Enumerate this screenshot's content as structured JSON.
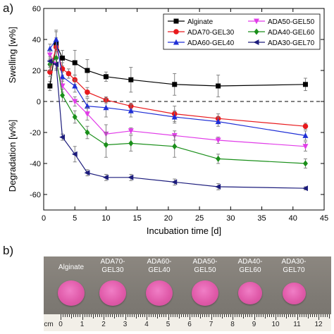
{
  "panel_a_label": "a)",
  "panel_b_label": "b)",
  "chart_data": {
    "type": "line",
    "xlabel": "Incubation time [d]",
    "ylabel_top": "Swelling [w%]",
    "ylabel_bottom": "Degradation [w%]",
    "xlim": [
      0,
      45
    ],
    "ylim": [
      -70,
      60
    ],
    "xticks": [
      0,
      5,
      10,
      15,
      20,
      25,
      30,
      35,
      40,
      45
    ],
    "yticks": [
      -60,
      -40,
      -20,
      0,
      20,
      40,
      60
    ],
    "zero_reference_line": "dashed",
    "legend_placement": "top-right",
    "series": [
      {
        "name": "Alginate",
        "color": "#000000",
        "marker": "square",
        "x": [
          1,
          2,
          3,
          5,
          7,
          10,
          14,
          21,
          28,
          42
        ],
        "y": [
          10,
          37,
          28,
          25,
          20,
          16,
          14,
          11,
          10,
          11
        ],
        "err": [
          3,
          8,
          5,
          8,
          7,
          3,
          8,
          7,
          7,
          4
        ]
      },
      {
        "name": "ADA70-GEL30",
        "color": "#e8191c",
        "marker": "circle",
        "x": [
          1,
          2,
          3,
          4,
          5,
          7,
          10,
          14,
          21,
          28,
          42
        ],
        "y": [
          19,
          35,
          21,
          18,
          14,
          6,
          1,
          -3,
          -8,
          -11,
          -16
        ],
        "err": [
          3,
          6,
          4,
          3,
          3,
          3,
          2,
          2,
          5,
          3,
          2
        ]
      },
      {
        "name": "ADA60-GEL40",
        "color": "#1f2fd6",
        "marker": "triangle-up",
        "x": [
          1,
          2,
          3,
          5,
          7,
          10,
          14,
          21,
          28,
          42
        ],
        "y": [
          34,
          40,
          16,
          10,
          -3,
          -4,
          -6,
          -10,
          -13,
          -22
        ],
        "err": [
          3,
          6,
          3,
          4,
          5,
          6,
          4,
          4,
          3,
          3
        ]
      },
      {
        "name": "ADA50-GEL50",
        "color": "#e13ce8",
        "marker": "triangle-down",
        "x": [
          1,
          2,
          3,
          5,
          7,
          10,
          14,
          21,
          28,
          42
        ],
        "y": [
          30,
          24,
          10,
          0,
          -8,
          -21,
          -19,
          -22,
          -25,
          -29
        ],
        "err": [
          3,
          4,
          4,
          3,
          4,
          6,
          2,
          3,
          2,
          3
        ]
      },
      {
        "name": "ADA40-GEL60",
        "color": "#1a8f1a",
        "marker": "diamond",
        "x": [
          1,
          2,
          3,
          5,
          7,
          10,
          14,
          21,
          28,
          42
        ],
        "y": [
          24,
          28,
          4,
          -10,
          -20,
          -28,
          -27,
          -29,
          -37,
          -40
        ],
        "err": [
          4,
          4,
          4,
          4,
          4,
          8,
          5,
          7,
          3,
          3
        ]
      },
      {
        "name": "ADA30-GEL70",
        "color": "#1c1c7c",
        "marker": "triangle-left",
        "x": [
          1,
          2,
          3,
          5,
          7,
          10,
          14,
          21,
          28,
          42
        ],
        "y": [
          26,
          24,
          -23,
          -34,
          -46,
          -49,
          -49,
          -52,
          -55,
          -56
        ],
        "err": [
          3,
          3,
          2,
          5,
          2,
          2,
          2,
          2,
          2,
          1
        ]
      }
    ]
  },
  "photo": {
    "samples": [
      {
        "label": "Alginate"
      },
      {
        "label": "ADA70-\nGEL30"
      },
      {
        "label": "ADA60-\nGEL40"
      },
      {
        "label": "ADA50-\nGEL50"
      },
      {
        "label": "ADA40-\nGEL60"
      },
      {
        "label": "ADA30-\nGEL70"
      }
    ],
    "ruler_unit": "cm",
    "ruler_numbers": [
      "0",
      "1",
      "2",
      "3",
      "4",
      "5",
      "6",
      "7",
      "8",
      "9",
      "10",
      "11",
      "12"
    ],
    "sample_color": "#e05aa9"
  }
}
